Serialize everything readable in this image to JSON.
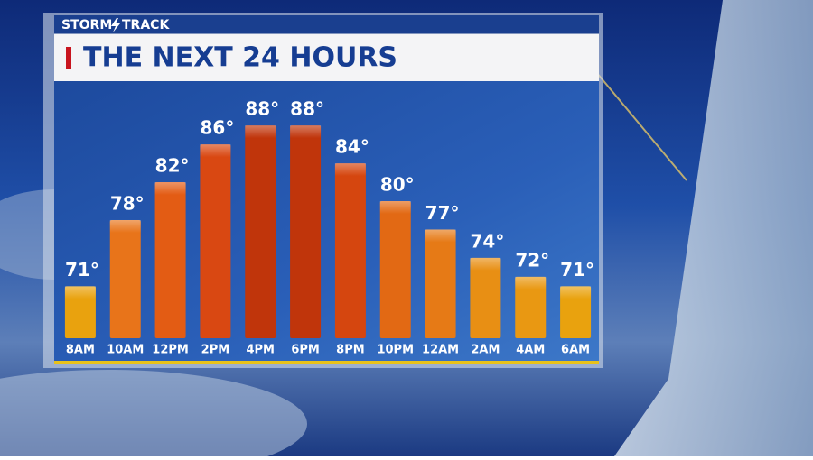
{
  "chart_data": {
    "type": "bar",
    "brand": [
      "STORM",
      "TRACK"
    ],
    "title": "THE NEXT 24 HOURS",
    "categories": [
      "8AM",
      "10AM",
      "12PM",
      "2PM",
      "4PM",
      "6PM",
      "8PM",
      "10PM",
      "12AM",
      "2AM",
      "4AM",
      "6AM"
    ],
    "values": [
      71,
      78,
      82,
      86,
      88,
      88,
      84,
      80,
      77,
      74,
      72,
      71
    ],
    "value_labels": [
      "71°",
      "78°",
      "82°",
      "86°",
      "88°",
      "88°",
      "84°",
      "80°",
      "77°",
      "74°",
      "72°",
      "71°"
    ],
    "colors": [
      "#e9a20e",
      "#e8741a",
      "#e35c14",
      "#d94812",
      "#c0350b",
      "#c0350b",
      "#d5460f",
      "#e26914",
      "#e67a16",
      "#e88f14",
      "#e99812",
      "#e9a20e"
    ],
    "ylim": [
      65.5,
      92.5
    ]
  }
}
